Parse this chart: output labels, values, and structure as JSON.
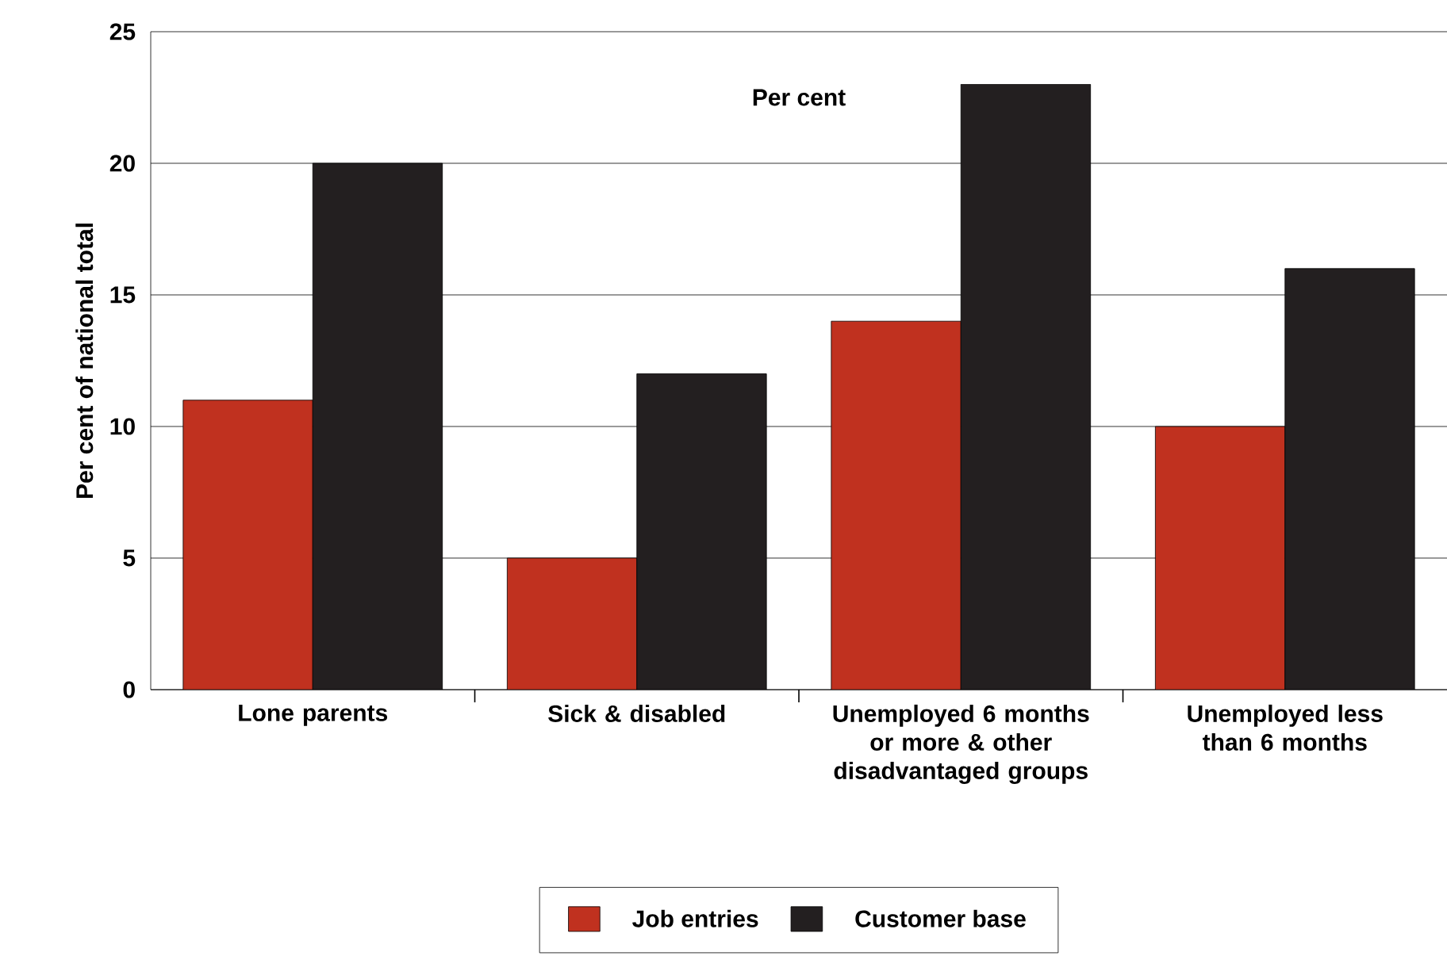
{
  "chart_data": {
    "type": "bar",
    "categories": [
      "Lone parents",
      "Sick & disabled",
      "Unemployed 6 months or more & other disadvantaged groups",
      "Unemployed less than 6 months"
    ],
    "series": [
      {
        "name": "Job entries",
        "color": "#c0311f",
        "values": [
          11,
          5,
          14,
          10
        ]
      },
      {
        "name": "Customer base",
        "color": "#231f20",
        "values": [
          20,
          12,
          23,
          16
        ]
      }
    ],
    "ylabel": "Per cent of national total",
    "annotations": [
      "Per cent"
    ],
    "ylim": [
      0,
      25
    ],
    "yticks": [
      0,
      5,
      10,
      15,
      20,
      25
    ],
    "grid": "y",
    "legend": "bottom"
  }
}
